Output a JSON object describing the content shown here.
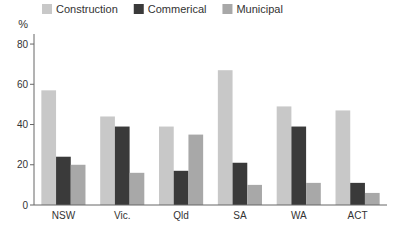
{
  "chart_data": {
    "type": "bar",
    "y_label": "%",
    "categories": [
      "NSW",
      "Vic.",
      "Qld",
      "SA",
      "WA",
      "ACT"
    ],
    "series": [
      {
        "name": "Construction",
        "color": "#c8c8c8",
        "values": [
          57,
          44,
          39,
          67,
          49,
          47
        ]
      },
      {
        "name": "Commerical",
        "color": "#3a3a3a",
        "values": [
          24,
          39,
          17,
          21,
          39,
          11
        ]
      },
      {
        "name": "Municipal",
        "color": "#a8a8a8",
        "values": [
          20,
          16,
          35,
          10,
          11,
          6
        ]
      }
    ],
    "ylim": [
      0,
      85
    ],
    "yticks": [
      0,
      20,
      40,
      60,
      80
    ],
    "grid": false,
    "legend": "top-left"
  }
}
